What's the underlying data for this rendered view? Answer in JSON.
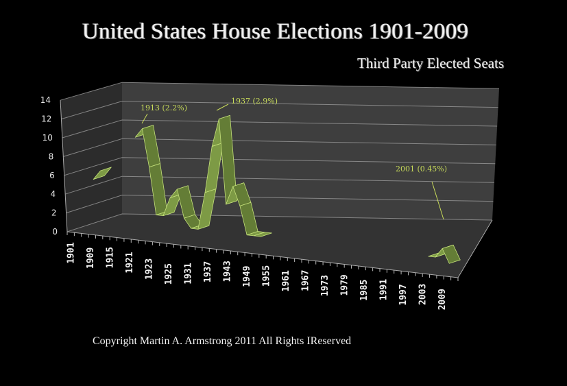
{
  "chart_data": {
    "type": "area",
    "style": "3d-ribbon",
    "title": "United States House Elections 1901-2009",
    "subtitle": "Third Party Elected Seats",
    "xlabel": "",
    "ylabel": "",
    "ylim": [
      0,
      14
    ],
    "yticks": [
      0,
      2,
      4,
      6,
      8,
      10,
      12,
      14
    ],
    "grid": true,
    "categories": [
      "1901",
      "1909",
      "1915",
      "1921",
      "1923",
      "1925",
      "1931",
      "1937",
      "1943",
      "1949",
      "1955",
      "1961",
      "1967",
      "1973",
      "1979",
      "1985",
      "1991",
      "1997",
      "2003",
      "2009"
    ],
    "series": [
      {
        "name": "Third Party Elected Seats",
        "x": [
          1901,
          1903,
          1911,
          1913,
          1915,
          1917,
          1919,
          1921,
          1923,
          1925,
          1927,
          1929,
          1931,
          1933,
          1935,
          1937,
          1939,
          1941,
          1943,
          1945,
          1947,
          1949,
          1951,
          1953,
          1955,
          1997,
          1999,
          2001,
          2003
        ],
        "values": [
          5,
          6,
          null,
          10,
          11,
          7,
          2,
          2,
          4,
          5,
          2,
          1,
          1,
          5,
          10,
          13,
          4,
          6,
          4,
          1,
          1,
          1,
          null,
          null,
          null,
          1,
          1,
          2,
          0.5
        ]
      }
    ],
    "annotations": [
      {
        "label": "1913 (2.2%)",
        "x": 1913,
        "y": 11
      },
      {
        "label": "1937 (2.9%)",
        "x": 1937,
        "y": 13
      },
      {
        "label": "2001 (0.45%)",
        "x": 2001,
        "y": 2
      }
    ],
    "colors": {
      "ribbon": "#7d9a45",
      "ribbon_dark": "#647d36",
      "ribbon_edge": "#c4e07a",
      "annotation": "#c9dc5a",
      "wall": "#3e3e3e",
      "side_wall": "#2c2c2c",
      "floor": "#333333",
      "grid": "#9a9a9a"
    }
  },
  "footer": {
    "copyright": "Copyright Martin A. Armstrong 2011 All Rights IReserved"
  }
}
